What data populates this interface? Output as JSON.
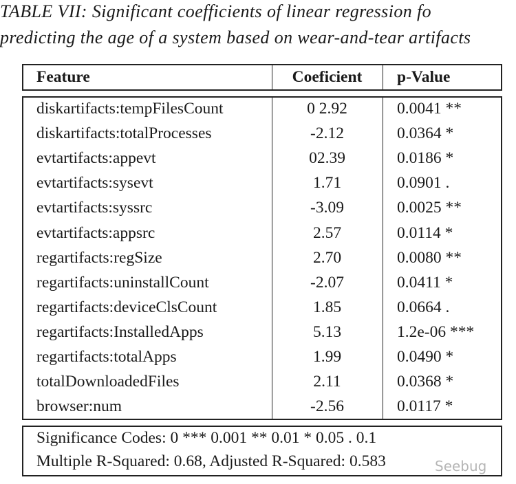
{
  "caption": [
    "TABLE VII: Significant coefficients of linear regression fo",
    "predicting the age of a system based on wear-and-tear artifacts"
  ],
  "table": {
    "header": [
      "Feature",
      "Coeficient",
      "p-Value"
    ],
    "rows": [
      [
        "diskartifacts:tempFilesCount",
        "0 2.92",
        "0.0041 **"
      ],
      [
        "diskartifacts:totalProcesses",
        "-2.12",
        "0.0364 *"
      ],
      [
        "evtartifacts:appevt",
        "02.39",
        "0.0186 *"
      ],
      [
        "evtartifacts:sysevt",
        "1.71",
        "0.0901 ."
      ],
      [
        "evtartifacts:syssrc",
        "-3.09",
        "0.0025 **"
      ],
      [
        "evtartifacts:appsrc",
        "2.57",
        "0.0114 *"
      ],
      [
        "regartifacts:regSize",
        "2.70",
        "0.0080 **"
      ],
      [
        "regartifacts:uninstallCount",
        "-2.07",
        "0.0411 *"
      ],
      [
        "regartifacts:deviceClsCount",
        "1.85",
        "0.0664 ."
      ],
      [
        "regartifacts:InstalledApps",
        "5.13",
        "1.2e-06 ***"
      ],
      [
        "regartifacts:totalApps",
        "1.99",
        "0.0490 *"
      ],
      [
        "totalDownloadedFiles",
        "2.11",
        "0.0368 *"
      ],
      [
        "browser:num",
        "-2.56",
        "0.0117 *"
      ]
    ],
    "footer": [
      "Significance Codes: 0 *** 0.001 ** 0.01 * 0.05 . 0.1",
      "Multiple R-Squared: 0.68, Adjusted R-Squared: 0.583"
    ]
  },
  "watermark": "Seebug"
}
